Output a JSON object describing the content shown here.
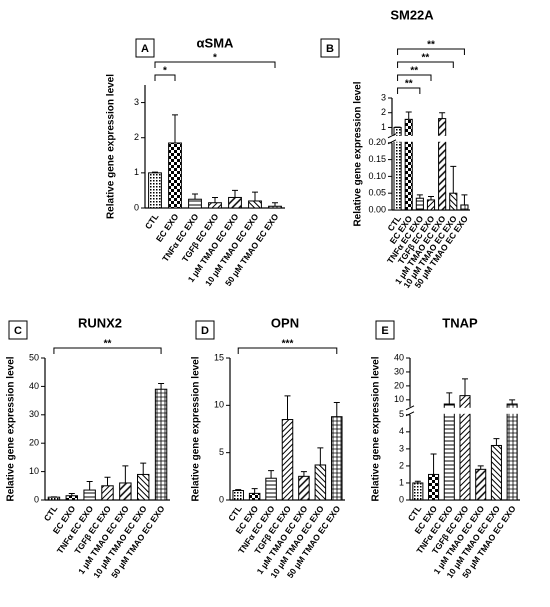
{
  "chart_data": [
    {
      "type": "bar",
      "panel": "A",
      "title": "αSMA",
      "ylabel": "Relative gene expression level",
      "categories": [
        "CTL",
        "EC EXO",
        "TNFα EC EXO",
        "TGFβ EC EXO",
        "1 μM TMAO EC EXO",
        "10 μM TMAO EC EXO",
        "50 μM TMAO EC EXO"
      ],
      "values": [
        1,
        1.85,
        0.25,
        0.15,
        0.3,
        0.2,
        0.05
      ],
      "errors": [
        0.02,
        0.8,
        0.15,
        0.15,
        0.2,
        0.25,
        0.1
      ],
      "ylim": [
        0,
        3.5
      ],
      "yticks": [
        0,
        1,
        2,
        3
      ],
      "brackets": [
        {
          "from": "CTL",
          "to": "EC EXO",
          "label": "*"
        },
        {
          "from": "CTL",
          "to": "50 μM TMAO EC EXO",
          "label": "*"
        }
      ]
    },
    {
      "type": "bar",
      "panel": "B",
      "title": "SM22A",
      "ylabel": "Relative gene expression level",
      "categories": [
        "CTL",
        "EC EXO",
        "TNFα EC EXO",
        "TGFβ EC EXO",
        "1 μM TMAO EC EXO",
        "10 μM TMAO EC EXO",
        "50 μM TMAO EC EXO"
      ],
      "values": [
        1,
        1.55,
        0.035,
        0.03,
        1.6,
        0.05,
        0.015
      ],
      "errors": [
        0.02,
        0.5,
        0.01,
        0.01,
        0.4,
        0.08,
        0.03
      ],
      "y_segments": [
        {
          "ylim": [
            0,
            0.2
          ],
          "yticks": [
            {
              "value": 0,
              "label": "0.00"
            },
            0.05,
            {
              "value": 0.1,
              "label": "0.10"
            },
            0.15,
            {
              "value": 0.2,
              "label": "0.20"
            }
          ]
        },
        {
          "ylim": [
            0.5,
            3
          ],
          "yticks": [
            1,
            2,
            3
          ]
        }
      ],
      "brackets": [
        {
          "from": "CTL",
          "to": "TNFα EC EXO",
          "label": "**"
        },
        {
          "from": "CTL",
          "to": "TGFβ EC EXO",
          "label": "**"
        },
        {
          "from": "CTL",
          "to": "10 μM TMAO EC EXO",
          "label": "**"
        },
        {
          "from": "CTL",
          "to": "50 μM TMAO EC EXO",
          "label": "**"
        }
      ]
    },
    {
      "type": "bar",
      "panel": "C",
      "title": "RUNX2",
      "ylabel": "Relative gene expression level",
      "categories": [
        "CTL",
        "EC EXO",
        "TNFα EC EXO",
        "TGFβ EC EXO",
        "1 μM TMAO EC EXO",
        "10 μM TMAO EC EXO",
        "50 μM TMAO EC EXO"
      ],
      "values": [
        1,
        1.5,
        3.5,
        5,
        6,
        9,
        39
      ],
      "errors": [
        0.1,
        0.8,
        3,
        3,
        6,
        4,
        2
      ],
      "ylim": [
        0,
        50
      ],
      "yticks": [
        0,
        10,
        20,
        30,
        40,
        50
      ],
      "brackets": [
        {
          "from": "CTL",
          "to": "50 μM TMAO EC EXO",
          "label": "**"
        }
      ]
    },
    {
      "type": "bar",
      "panel": "D",
      "title": "OPN",
      "ylabel": "Relative gene expression level",
      "categories": [
        "CTL",
        "EC EXO",
        "TNFα EC EXO",
        "TGFβ EC EXO",
        "1 μM TMAO EC EXO",
        "10 μM TMAO EC EXO",
        "50 μM TMAO EC EXO"
      ],
      "values": [
        1,
        0.7,
        2.3,
        8.5,
        2.5,
        3.7,
        8.8
      ],
      "errors": [
        0.1,
        0.5,
        0.8,
        2.5,
        0.5,
        1.8,
        1.5
      ],
      "ylim": [
        0,
        15
      ],
      "yticks": [
        0,
        5,
        10,
        15
      ],
      "brackets": [
        {
          "from": "CTL",
          "to": "50 μM TMAO EC EXO",
          "label": "***"
        }
      ]
    },
    {
      "type": "bar",
      "panel": "E",
      "title": "TNAP",
      "ylabel": "Relative gene expression level",
      "categories": [
        "CTL",
        "EC EXO",
        "TNFα EC EXO",
        "TGFβ EC EXO",
        "1 μM TMAO EC EXO",
        "10 μM TMAO EC EXO",
        "50 μM TMAO EC EXO"
      ],
      "values": [
        1,
        1.5,
        7,
        13,
        1.8,
        3.2,
        7
      ],
      "errors": [
        0.1,
        1.2,
        8,
        12,
        0.2,
        0.4,
        3
      ],
      "y_segments": [
        {
          "ylim": [
            0,
            5
          ],
          "yticks": [
            0,
            1,
            2,
            3,
            4,
            5
          ]
        },
        {
          "ylim": [
            5,
            40
          ],
          "yticks": [
            10,
            20,
            30,
            40
          ]
        }
      ],
      "brackets": []
    }
  ]
}
